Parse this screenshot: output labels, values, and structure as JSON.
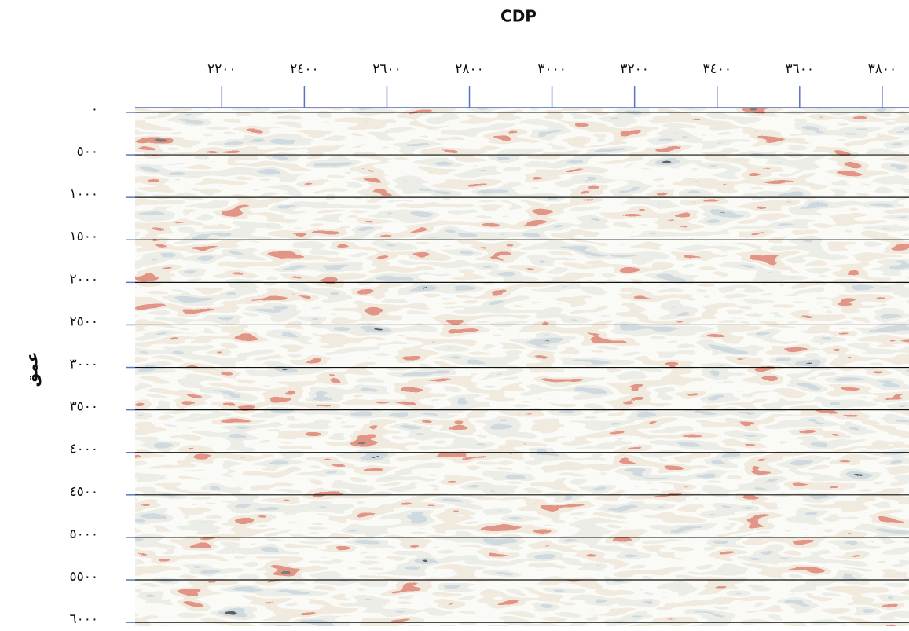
{
  "chart_data": {
    "type": "seismic",
    "title": "CDP",
    "ylabel": "عمق",
    "xlim": [
      1990,
      3865
    ],
    "ylim": [
      -55,
      6045
    ],
    "y_inverted": true,
    "grid": true,
    "xticks": [
      {
        "value": 2200,
        "label": "٢٢٠٠"
      },
      {
        "value": 2400,
        "label": "٢٤٠٠"
      },
      {
        "value": 2600,
        "label": "٢٦٠٠"
      },
      {
        "value": 2800,
        "label": "٢٨٠٠"
      },
      {
        "value": 3000,
        "label": "٣٠٠٠"
      },
      {
        "value": 3200,
        "label": "٣٢٠٠"
      },
      {
        "value": 3400,
        "label": "٣٤٠٠"
      },
      {
        "value": 3600,
        "label": "٣٦٠٠"
      },
      {
        "value": 3800,
        "label": "٣٨٠٠"
      }
    ],
    "yticks": [
      {
        "value": 0,
        "label": "٠"
      },
      {
        "value": 500,
        "label": "٥٠٠"
      },
      {
        "value": 1000,
        "label": "١٠٠٠"
      },
      {
        "value": 1500,
        "label": "١٥٠٠"
      },
      {
        "value": 2000,
        "label": "٢٠٠٠"
      },
      {
        "value": 2500,
        "label": "٢٥٠٠"
      },
      {
        "value": 3000,
        "label": "٣٠٠٠"
      },
      {
        "value": 3500,
        "label": "٣٥٠٠"
      },
      {
        "value": 4000,
        "label": "٤٠٠٠"
      },
      {
        "value": 4500,
        "label": "٤٥٠٠"
      },
      {
        "value": 5000,
        "label": "٥٠٠٠"
      },
      {
        "value": 5500,
        "label": "٥٥٠٠"
      },
      {
        "value": 6000,
        "label": "٦٠٠٠"
      }
    ]
  }
}
